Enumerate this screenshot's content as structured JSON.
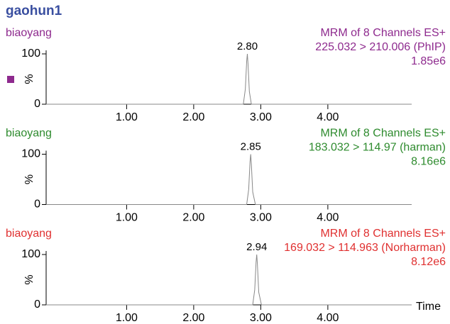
{
  "title": "gaohun1",
  "chart_data": [
    {
      "type": "line",
      "sample": "biaoyang",
      "info": [
        "MRM of 8 Channels ES+",
        "225.032 > 210.006 (PhIP)",
        "1.85e6"
      ],
      "color": "#8e2a8e",
      "line_color": "#888888",
      "ylabel": "%",
      "ylim": [
        0,
        100
      ],
      "yticks": [
        0,
        100
      ],
      "xlim": [
        -0.2,
        5.25
      ],
      "xticks": [
        {
          "value": 1,
          "label": "1.00"
        },
        {
          "value": 2,
          "label": "2.00"
        },
        {
          "value": 3,
          "label": "3.00"
        },
        {
          "value": 4,
          "label": "4.00"
        }
      ],
      "x": [
        -0.2,
        2.74,
        2.77,
        2.79,
        2.8,
        2.81,
        2.83,
        2.86,
        5.25
      ],
      "values": [
        0,
        0,
        30,
        85,
        100,
        80,
        25,
        0,
        0
      ],
      "peak": {
        "value": 2.8,
        "label": "2.80"
      }
    },
    {
      "type": "line",
      "sample": "biaoyang",
      "info": [
        "MRM of 8 Channels ES+",
        "183.032 > 114.97 (harman)",
        "8.16e6"
      ],
      "color": "#2e8b2e",
      "line_color": "#888888",
      "ylabel": "%",
      "ylim": [
        0,
        100
      ],
      "yticks": [
        0,
        100
      ],
      "xlim": [
        -0.2,
        5.25
      ],
      "xticks": [
        {
          "value": 1,
          "label": "1.00"
        },
        {
          "value": 2,
          "label": "2.00"
        },
        {
          "value": 3,
          "label": "3.00"
        },
        {
          "value": 4,
          "label": "4.00"
        }
      ],
      "x": [
        -0.2,
        2.79,
        2.82,
        2.84,
        2.85,
        2.86,
        2.88,
        2.92,
        5.25
      ],
      "values": [
        0,
        0,
        30,
        85,
        100,
        80,
        25,
        0,
        0
      ],
      "peak": {
        "value": 2.85,
        "label": "2.85"
      }
    },
    {
      "type": "line",
      "sample": "biaoyang",
      "info": [
        "MRM of 8 Channels ES+",
        "169.032 > 114.963 (Norharman)",
        "8.12e6"
      ],
      "color": "#e03030",
      "line_color": "#888888",
      "ylabel": "%",
      "ylim": [
        0,
        100
      ],
      "yticks": [
        0,
        100
      ],
      "xlim": [
        -0.2,
        5.25
      ],
      "xlabel": "Time",
      "xticks": [
        {
          "value": 1,
          "label": "1.00"
        },
        {
          "value": 2,
          "label": "2.00"
        },
        {
          "value": 3,
          "label": "3.00"
        },
        {
          "value": 4,
          "label": "4.00"
        }
      ],
      "x": [
        -0.2,
        2.88,
        2.91,
        2.93,
        2.94,
        2.95,
        2.97,
        3.01,
        5.25
      ],
      "values": [
        0,
        0,
        30,
        85,
        100,
        80,
        25,
        0,
        0
      ],
      "peak": {
        "value": 2.94,
        "label": "2.94"
      }
    }
  ]
}
